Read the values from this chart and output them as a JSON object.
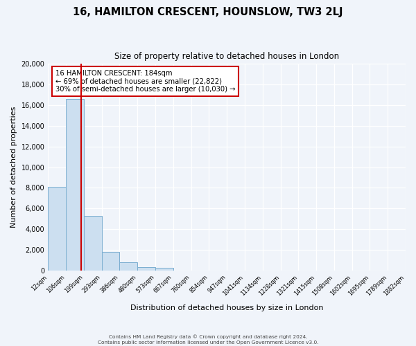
{
  "title": "16, HAMILTON CRESCENT, HOUNSLOW, TW3 2LJ",
  "subtitle": "Size of property relative to detached houses in London",
  "xlabel": "Distribution of detached houses by size in London",
  "ylabel": "Number of detached properties",
  "bin_labels": [
    "12sqm",
    "106sqm",
    "199sqm",
    "293sqm",
    "386sqm",
    "480sqm",
    "573sqm",
    "667sqm",
    "760sqm",
    "854sqm",
    "947sqm",
    "1041sqm",
    "1134sqm",
    "1228sqm",
    "1321sqm",
    "1415sqm",
    "1508sqm",
    "1602sqm",
    "1695sqm",
    "1789sqm",
    "1882sqm"
  ],
  "bar_values": [
    8100,
    16600,
    5300,
    1800,
    800,
    350,
    300,
    0,
    0,
    0,
    0,
    0,
    0,
    0,
    0,
    0,
    0,
    0,
    0,
    0
  ],
  "bar_color": "#ccdff0",
  "bar_edgecolor": "#7aaed0",
  "property_value": 184,
  "bin_edges": [
    12,
    106,
    199,
    293,
    386,
    480,
    573,
    667,
    760,
    854,
    947,
    1041,
    1134,
    1228,
    1321,
    1415,
    1508,
    1602,
    1695,
    1789,
    1882
  ],
  "annotation_title": "16 HAMILTON CRESCENT: 184sqm",
  "annotation_line1": "← 69% of detached houses are smaller (22,822)",
  "annotation_line2": "30% of semi-detached houses are larger (10,030) →",
  "annotation_box_edgecolor": "#cc0000",
  "property_line_color": "#cc0000",
  "ylim": [
    0,
    20000
  ],
  "yticks": [
    0,
    2000,
    4000,
    6000,
    8000,
    10000,
    12000,
    14000,
    16000,
    18000,
    20000
  ],
  "footer_line1": "Contains HM Land Registry data © Crown copyright and database right 2024.",
  "footer_line2": "Contains public sector information licensed under the Open Government Licence v3.0.",
  "bg_color": "#f0f4fa",
  "grid_color": "#ffffff",
  "num_bins": 20
}
